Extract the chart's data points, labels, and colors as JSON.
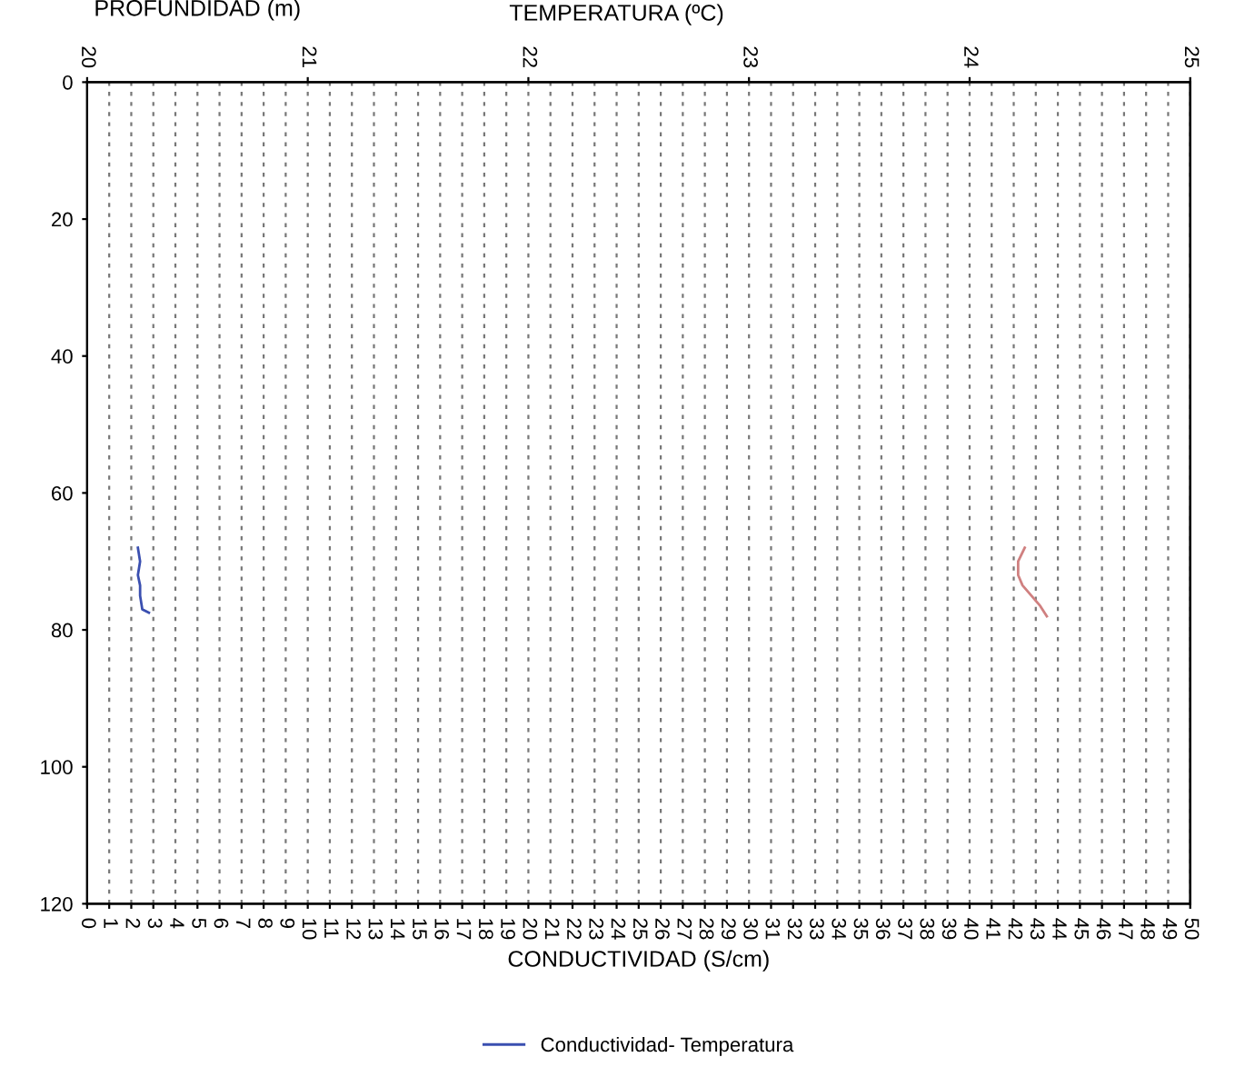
{
  "chart_data": {
    "type": "line",
    "ylabel": "PROFUNDIDAD (m)",
    "xlabel": "CONDUCTIVIDAD (S/cm)",
    "x2label": "TEMPERATURA (ºC)",
    "xlim": [
      0,
      50
    ],
    "xticks": [
      0,
      1,
      2,
      3,
      4,
      5,
      6,
      7,
      8,
      9,
      10,
      11,
      12,
      13,
      14,
      15,
      16,
      17,
      18,
      19,
      20,
      21,
      22,
      23,
      24,
      25,
      26,
      27,
      28,
      29,
      30,
      31,
      32,
      33,
      34,
      35,
      36,
      37,
      38,
      39,
      40,
      41,
      42,
      43,
      44,
      45,
      46,
      47,
      48,
      49,
      50
    ],
    "x2lim": [
      20,
      25
    ],
    "x2ticks": [
      20,
      21,
      22,
      23,
      24,
      25
    ],
    "ylim": [
      120,
      0
    ],
    "yticks": [
      0,
      20,
      40,
      60,
      80,
      100,
      120
    ],
    "grid": "x",
    "legend": "bottom",
    "line_style": "solid",
    "marker": "none",
    "series": [
      {
        "name": "Conductividad- Temperatura",
        "color": "#3a4fb0",
        "x": [
          2.3,
          2.4,
          2.3,
          2.4,
          2.4,
          2.5,
          2.8
        ],
        "values": [
          68,
          70,
          72,
          73.5,
          75,
          77,
          77.5
        ]
      },
      {
        "color": "#d08080",
        "axis": "x2",
        "x": [
          24.25,
          24.22,
          24.22,
          24.24,
          24.28,
          24.32,
          24.35
        ],
        "values": [
          68,
          70,
          72,
          73.5,
          75,
          76.5,
          78
        ]
      }
    ]
  }
}
